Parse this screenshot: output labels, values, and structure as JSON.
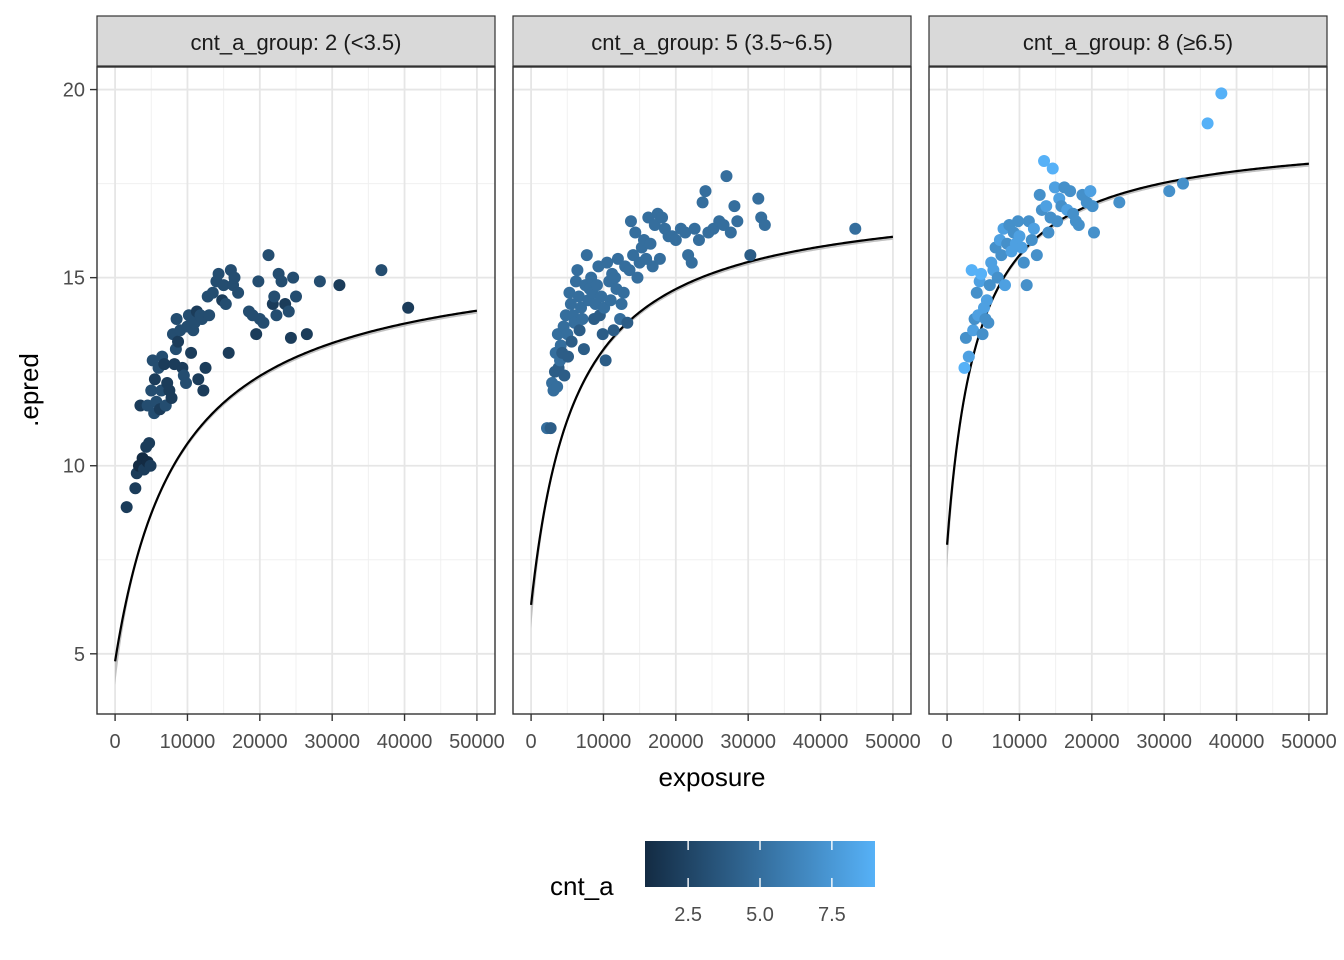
{
  "chart_data": {
    "type": "scatter",
    "facet_variable": "cnt_a_group",
    "xlabel": "exposure",
    "ylabel": ".epred",
    "xlim": [
      -2500,
      52500
    ],
    "ylim": [
      3.4,
      20.6
    ],
    "x_ticks": [
      0,
      10000,
      20000,
      30000,
      40000,
      50000
    ],
    "x_tick_labels": [
      "0",
      "10000",
      "20000",
      "30000",
      "40000",
      "50000"
    ],
    "y_ticks": [
      5,
      10,
      15,
      20
    ],
    "y_tick_labels": [
      "5",
      "10",
      "15",
      "20"
    ],
    "grid": true,
    "legend": {
      "title": "cnt_a",
      "position": "bottom",
      "type": "colorbar",
      "range": [
        1,
        9
      ],
      "low_color": "#132B43",
      "high_color": "#56B1F7",
      "ticks": [
        2.5,
        5.0,
        7.5
      ],
      "tick_labels": [
        "2.5",
        "5.0",
        "7.5"
      ]
    },
    "panels": [
      {
        "label": "cnt_a_group: 2 (<3.5)",
        "fit": {
          "asymptote": 15.8,
          "a": 11.0,
          "b": 9000
        },
        "points": [
          [
            1600,
            8.9,
            2
          ],
          [
            2800,
            9.4,
            2
          ],
          [
            3000,
            9.8,
            2
          ],
          [
            3300,
            10.0,
            1
          ],
          [
            3500,
            11.6,
            2
          ],
          [
            3800,
            10.2,
            1
          ],
          [
            4000,
            9.9,
            2
          ],
          [
            4300,
            10.5,
            2
          ],
          [
            4500,
            10.1,
            1
          ],
          [
            4700,
            10.6,
            2
          ],
          [
            4500,
            11.6,
            3
          ],
          [
            4900,
            10.0,
            2
          ],
          [
            5000,
            12.0,
            3
          ],
          [
            5200,
            12.8,
            3
          ],
          [
            5400,
            11.4,
            3
          ],
          [
            5500,
            12.3,
            2
          ],
          [
            5700,
            11.7,
            3
          ],
          [
            6000,
            12.6,
            3
          ],
          [
            6200,
            11.5,
            2
          ],
          [
            6400,
            12.0,
            3
          ],
          [
            6500,
            12.9,
            3
          ],
          [
            6800,
            12.7,
            2
          ],
          [
            7000,
            11.6,
            3
          ],
          [
            7200,
            12.2,
            2
          ],
          [
            7500,
            12.0,
            2
          ],
          [
            7800,
            11.8,
            2
          ],
          [
            8000,
            13.5,
            3
          ],
          [
            8200,
            12.7,
            2
          ],
          [
            8400,
            13.1,
            3
          ],
          [
            8500,
            13.9,
            3
          ],
          [
            8700,
            13.3,
            2
          ],
          [
            9000,
            13.6,
            3
          ],
          [
            9300,
            12.6,
            2
          ],
          [
            9500,
            12.4,
            3
          ],
          [
            9800,
            12.2,
            3
          ],
          [
            10000,
            13.7,
            3
          ],
          [
            10200,
            14.0,
            3
          ],
          [
            10500,
            13.0,
            2
          ],
          [
            10800,
            13.6,
            3
          ],
          [
            11000,
            13.8,
            3
          ],
          [
            11300,
            14.1,
            2
          ],
          [
            11500,
            12.3,
            2
          ],
          [
            11800,
            14.0,
            3
          ],
          [
            12000,
            13.9,
            3
          ],
          [
            12200,
            12.0,
            2
          ],
          [
            12500,
            12.6,
            2
          ],
          [
            12800,
            14.5,
            3
          ],
          [
            13000,
            14.0,
            3
          ],
          [
            13500,
            14.6,
            3
          ],
          [
            14000,
            14.9,
            3
          ],
          [
            14300,
            15.1,
            3
          ],
          [
            14800,
            14.4,
            2
          ],
          [
            15000,
            14.8,
            3
          ],
          [
            15300,
            14.3,
            3
          ],
          [
            15700,
            13.0,
            2
          ],
          [
            16000,
            15.2,
            3
          ],
          [
            16300,
            14.8,
            3
          ],
          [
            16500,
            15.0,
            3
          ],
          [
            17000,
            14.6,
            3
          ],
          [
            18500,
            14.1,
            3
          ],
          [
            19000,
            14.0,
            3
          ],
          [
            19500,
            13.5,
            2
          ],
          [
            19800,
            14.9,
            3
          ],
          [
            20000,
            13.9,
            3
          ],
          [
            20500,
            13.8,
            3
          ],
          [
            21200,
            15.6,
            3
          ],
          [
            21800,
            14.3,
            2
          ],
          [
            22000,
            14.5,
            3
          ],
          [
            22300,
            14.0,
            3
          ],
          [
            22600,
            15.1,
            3
          ],
          [
            23000,
            14.9,
            3
          ],
          [
            23500,
            14.3,
            2
          ],
          [
            24000,
            14.1,
            3
          ],
          [
            24300,
            13.4,
            2
          ],
          [
            24600,
            15.0,
            3
          ],
          [
            25000,
            14.5,
            3
          ],
          [
            26500,
            13.5,
            2
          ],
          [
            28300,
            14.9,
            3
          ],
          [
            31000,
            14.8,
            2
          ],
          [
            36800,
            15.2,
            3
          ],
          [
            40500,
            14.2,
            2
          ]
        ]
      },
      {
        "label": "cnt_a_group: 5 (3.5~6.5)",
        "fit": {
          "asymptote": 17.3,
          "a": 11.0,
          "b": 6200
        },
        "points": [
          [
            2200,
            11.0,
            5
          ],
          [
            2700,
            11.0,
            4
          ],
          [
            2900,
            12.2,
            5
          ],
          [
            3100,
            12.0,
            5
          ],
          [
            3300,
            12.5,
            4
          ],
          [
            3400,
            13.0,
            5
          ],
          [
            3600,
            12.1,
            5
          ],
          [
            3700,
            13.5,
            5
          ],
          [
            3800,
            12.6,
            4
          ],
          [
            4000,
            12.8,
            5
          ],
          [
            4100,
            13.2,
            5
          ],
          [
            4300,
            13.0,
            4
          ],
          [
            4500,
            13.7,
            5
          ],
          [
            4600,
            12.4,
            4
          ],
          [
            4800,
            14.0,
            5
          ],
          [
            5000,
            13.5,
            5
          ],
          [
            5100,
            12.9,
            4
          ],
          [
            5300,
            14.6,
            5
          ],
          [
            5500,
            14.3,
            5
          ],
          [
            5600,
            13.3,
            4
          ],
          [
            5800,
            14.0,
            5
          ],
          [
            6000,
            13.8,
            5
          ],
          [
            6200,
            14.9,
            5
          ],
          [
            6400,
            15.2,
            5
          ],
          [
            6600,
            14.5,
            5
          ],
          [
            6700,
            13.6,
            4
          ],
          [
            6900,
            14.2,
            5
          ],
          [
            7100,
            13.9,
            5
          ],
          [
            7300,
            13.1,
            4
          ],
          [
            7500,
            14.8,
            5
          ],
          [
            7700,
            15.6,
            5
          ],
          [
            7900,
            14.4,
            5
          ],
          [
            8100,
            14.7,
            5
          ],
          [
            8300,
            15.0,
            5
          ],
          [
            8500,
            14.6,
            5
          ],
          [
            8700,
            13.9,
            4
          ],
          [
            8900,
            14.3,
            5
          ],
          [
            9100,
            14.8,
            5
          ],
          [
            9300,
            15.3,
            5
          ],
          [
            9500,
            14.0,
            4
          ],
          [
            9700,
            14.5,
            5
          ],
          [
            9900,
            13.5,
            4
          ],
          [
            10100,
            14.2,
            5
          ],
          [
            10300,
            12.8,
            4
          ],
          [
            10500,
            15.4,
            5
          ],
          [
            10800,
            14.9,
            5
          ],
          [
            11000,
            14.4,
            5
          ],
          [
            11200,
            15.1,
            5
          ],
          [
            11400,
            13.6,
            4
          ],
          [
            11600,
            15.0,
            5
          ],
          [
            11800,
            14.7,
            5
          ],
          [
            12000,
            15.5,
            5
          ],
          [
            12300,
            13.9,
            5
          ],
          [
            12500,
            14.3,
            5
          ],
          [
            12800,
            14.6,
            5
          ],
          [
            13000,
            15.3,
            5
          ],
          [
            13300,
            13.8,
            4
          ],
          [
            13600,
            15.2,
            5
          ],
          [
            13800,
            16.5,
            5
          ],
          [
            14100,
            15.6,
            5
          ],
          [
            14400,
            16.2,
            5
          ],
          [
            14700,
            15.0,
            5
          ],
          [
            15000,
            15.4,
            5
          ],
          [
            15300,
            15.8,
            5
          ],
          [
            15600,
            16.0,
            5
          ],
          [
            15900,
            15.5,
            5
          ],
          [
            16200,
            16.6,
            5
          ],
          [
            16500,
            15.9,
            5
          ],
          [
            16800,
            15.3,
            5
          ],
          [
            17100,
            16.4,
            5
          ],
          [
            17500,
            16.7,
            5
          ],
          [
            17800,
            15.5,
            5
          ],
          [
            18100,
            16.6,
            5
          ],
          [
            18500,
            16.3,
            5
          ],
          [
            19000,
            16.1,
            5
          ],
          [
            19500,
            16.1,
            5
          ],
          [
            20000,
            16.0,
            5
          ],
          [
            20700,
            16.3,
            5
          ],
          [
            21300,
            16.2,
            5
          ],
          [
            21700,
            15.6,
            5
          ],
          [
            22200,
            15.4,
            5
          ],
          [
            22600,
            16.3,
            5
          ],
          [
            23200,
            16.0,
            5
          ],
          [
            23700,
            17.0,
            5
          ],
          [
            24100,
            17.3,
            5
          ],
          [
            24500,
            16.2,
            5
          ],
          [
            25200,
            16.3,
            5
          ],
          [
            26000,
            16.5,
            5
          ],
          [
            26600,
            16.4,
            5
          ],
          [
            27000,
            17.7,
            5
          ],
          [
            27600,
            16.2,
            5
          ],
          [
            28100,
            16.9,
            5
          ],
          [
            28500,
            16.5,
            5
          ],
          [
            30300,
            15.6,
            4
          ],
          [
            31400,
            17.1,
            5
          ],
          [
            31800,
            16.6,
            5
          ],
          [
            32300,
            16.4,
            5
          ],
          [
            44800,
            16.3,
            5
          ]
        ]
      },
      {
        "label": "cnt_a_group: 8 (≥6.5)",
        "fit": {
          "asymptote": 18.9,
          "a": 11.0,
          "b": 4300
        },
        "points": [
          [
            2400,
            12.6,
            9
          ],
          [
            2600,
            13.4,
            7
          ],
          [
            3000,
            12.9,
            8
          ],
          [
            3400,
            15.2,
            9
          ],
          [
            3600,
            13.6,
            8
          ],
          [
            3800,
            13.9,
            7
          ],
          [
            4100,
            14.6,
            7
          ],
          [
            4300,
            14.0,
            8
          ],
          [
            4500,
            14.9,
            8
          ],
          [
            4700,
            15.1,
            9
          ],
          [
            4900,
            13.5,
            7
          ],
          [
            5100,
            14.2,
            8
          ],
          [
            5300,
            13.9,
            7
          ],
          [
            5500,
            14.4,
            8
          ],
          [
            5700,
            13.8,
            7
          ],
          [
            5900,
            14.8,
            7
          ],
          [
            6100,
            15.4,
            8
          ],
          [
            6400,
            15.2,
            8
          ],
          [
            6700,
            15.8,
            7
          ],
          [
            7000,
            15.0,
            7
          ],
          [
            7300,
            16.0,
            8
          ],
          [
            7500,
            15.6,
            7
          ],
          [
            7800,
            16.3,
            8
          ],
          [
            8000,
            14.8,
            8
          ],
          [
            8300,
            15.9,
            7
          ],
          [
            8600,
            16.4,
            7
          ],
          [
            8900,
            15.7,
            8
          ],
          [
            9200,
            16.2,
            7
          ],
          [
            9500,
            15.9,
            8
          ],
          [
            9800,
            16.5,
            7
          ],
          [
            10000,
            16.1,
            8
          ],
          [
            10300,
            15.8,
            8
          ],
          [
            10600,
            15.4,
            7
          ],
          [
            11000,
            14.8,
            7
          ],
          [
            11300,
            16.5,
            7
          ],
          [
            11700,
            16.0,
            7
          ],
          [
            12000,
            16.3,
            8
          ],
          [
            12400,
            15.6,
            7
          ],
          [
            12800,
            17.2,
            7
          ],
          [
            13100,
            16.8,
            7
          ],
          [
            13400,
            18.1,
            9
          ],
          [
            13700,
            16.9,
            8
          ],
          [
            14000,
            16.2,
            7
          ],
          [
            14300,
            16.6,
            7
          ],
          [
            14600,
            17.9,
            9
          ],
          [
            14900,
            17.4,
            8
          ],
          [
            15200,
            16.5,
            7
          ],
          [
            15500,
            17.1,
            8
          ],
          [
            15800,
            16.9,
            7
          ],
          [
            16200,
            17.4,
            7
          ],
          [
            16600,
            16.8,
            8
          ],
          [
            17000,
            17.3,
            7
          ],
          [
            17400,
            16.7,
            7
          ],
          [
            17800,
            16.5,
            7
          ],
          [
            18200,
            16.4,
            7
          ],
          [
            18700,
            17.2,
            7
          ],
          [
            19300,
            17.0,
            7
          ],
          [
            19800,
            17.3,
            8
          ],
          [
            20100,
            16.9,
            7
          ],
          [
            20300,
            16.2,
            7
          ],
          [
            23800,
            17.0,
            7
          ],
          [
            30700,
            17.3,
            7
          ],
          [
            32600,
            17.5,
            7
          ],
          [
            36000,
            19.1,
            9
          ],
          [
            37900,
            19.9,
            9
          ]
        ]
      }
    ]
  }
}
